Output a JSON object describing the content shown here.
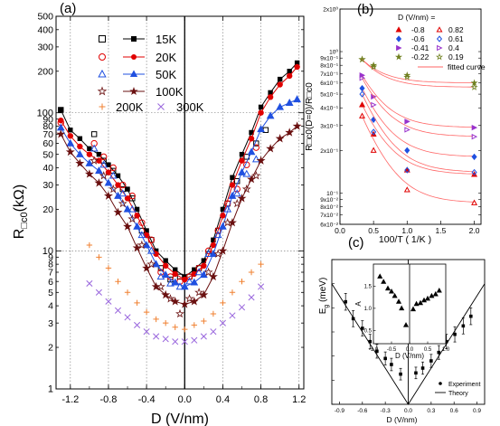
{
  "chart_data": [
    {
      "panel_label": "(a)",
      "type": "scatter",
      "xlabel": "D (V/nm)",
      "ylabel": "R□c0 (kΩ)",
      "ylabel_main": "R",
      "ylabel_sub": "□c0",
      "ylabel_unit": "(kΩ)",
      "x_scale": "linear",
      "y_scale": "log",
      "xlim": [
        -1.35,
        1.25
      ],
      "ylim": [
        1,
        500
      ],
      "x_ticks": [
        -1.2,
        -0.8,
        -0.4,
        0.0,
        0.4,
        0.8,
        1.2
      ],
      "x_tick_labels": [
        "-1.2",
        "-0.8",
        "-0.4",
        "0.0",
        "0.4",
        "0.8",
        "1.2"
      ],
      "y_ticks": [
        1,
        2,
        3,
        4,
        5,
        6,
        7,
        8,
        9,
        10,
        20,
        30,
        40,
        50,
        60,
        70,
        80,
        90,
        100,
        200,
        300,
        400,
        500
      ],
      "y_tick_labels": [
        "1",
        "2",
        "3",
        "4",
        "5",
        "6",
        "7",
        "8",
        "9",
        "10",
        "20",
        "30",
        "40",
        "50",
        "60",
        "70",
        "80",
        "90",
        "100",
        "200",
        "300",
        "400",
        "500"
      ],
      "grid": "dotted",
      "legend": "top-left",
      "series": [
        {
          "name": "15K",
          "marker": "open-square",
          "color": "#000000",
          "x": [
            -1.3,
            -0.95,
            -0.85,
            -0.75,
            -0.65,
            -0.55,
            -0.45,
            -0.35,
            -0.25,
            -0.15,
            -0.05,
            0.05,
            0.15,
            0.25,
            0.35,
            0.45,
            0.55,
            0.65,
            0.75,
            0.85
          ],
          "y": [
            105,
            70,
            45,
            38,
            28,
            24,
            14,
            12,
            7.5,
            6.2,
            6.5,
            6.5,
            7.5,
            9.5,
            14,
            22,
            32,
            48,
            60,
            75
          ]
        },
        {
          "name": "",
          "marker": "filled-square-line",
          "color": "#000000",
          "x": [
            -1.3,
            -1.2,
            -1.1,
            -1.0,
            -0.9,
            -0.8,
            -0.7,
            -0.6,
            -0.5,
            -0.4,
            -0.3,
            -0.2,
            -0.1,
            0.0,
            0.1,
            0.2,
            0.3,
            0.4,
            0.5,
            0.6,
            0.7,
            0.8,
            0.9,
            1.0,
            1.1,
            1.18
          ],
          "y": [
            105,
            75,
            65,
            55,
            50,
            42,
            35,
            28,
            20,
            14,
            10,
            8.5,
            7.3,
            6.5,
            7.3,
            8.5,
            12,
            20,
            34,
            50,
            72,
            110,
            140,
            175,
            200,
            230
          ]
        },
        {
          "name": "20K",
          "marker": "open-circle",
          "color": "#e00000",
          "x": [
            -1.3,
            -0.95,
            -0.85,
            -0.75,
            -0.65,
            -0.55,
            -0.45,
            -0.35,
            -0.25,
            -0.15,
            -0.05,
            0.05,
            0.15,
            0.25,
            0.35,
            0.45,
            0.55,
            0.65,
            0.75
          ],
          "y": [
            85,
            60,
            48,
            40,
            30,
            25,
            16,
            12,
            7,
            6.5,
            6,
            6.5,
            7.5,
            10,
            14,
            22,
            28,
            42,
            56
          ]
        },
        {
          "name": "",
          "marker": "filled-circle-line",
          "color": "#e00000",
          "x": [
            -1.3,
            -1.2,
            -1.1,
            -1.0,
            -0.9,
            -0.8,
            -0.7,
            -0.6,
            -0.5,
            -0.4,
            -0.3,
            -0.2,
            -0.1,
            0.0,
            0.1,
            0.2,
            0.3,
            0.4,
            0.5,
            0.6,
            0.7,
            0.8,
            0.9,
            1.0,
            1.1,
            1.18
          ],
          "y": [
            88,
            68,
            57,
            50,
            45,
            37,
            30,
            24,
            18,
            13,
            9.5,
            7.8,
            6.8,
            6.2,
            6.8,
            7.8,
            11,
            18,
            30,
            45,
            65,
            100,
            130,
            160,
            185,
            215
          ]
        },
        {
          "name": "50K",
          "marker": "open-triangle",
          "color": "#2050e0",
          "x": [
            -0.95,
            -0.85,
            -0.75,
            -0.65,
            -0.55,
            -0.45,
            -0.35,
            -0.25,
            -0.15,
            -0.05,
            0.05,
            0.15,
            0.25,
            0.35,
            0.45,
            0.55,
            0.65,
            0.75
          ],
          "y": [
            55,
            42,
            35,
            26,
            20,
            13,
            10,
            6.5,
            5.8,
            5.5,
            6,
            7,
            9.5,
            13,
            20,
            26,
            36,
            46
          ]
        },
        {
          "name": "",
          "marker": "filled-triangle-line",
          "color": "#2050e0",
          "x": [
            -1.3,
            -1.2,
            -1.1,
            -1.0,
            -0.9,
            -0.8,
            -0.7,
            -0.6,
            -0.5,
            -0.4,
            -0.3,
            -0.2,
            -0.1,
            0.0,
            0.1,
            0.2,
            0.3,
            0.4,
            0.5,
            0.6,
            0.7,
            0.8,
            0.9,
            1.0,
            1.1,
            1.18
          ],
          "y": [
            78,
            60,
            50,
            43,
            38,
            31,
            25,
            20,
            15,
            11,
            8,
            6.7,
            5.9,
            5.5,
            5.9,
            6.7,
            9.5,
            15,
            25,
            37,
            52,
            76,
            95,
            110,
            118,
            125
          ]
        },
        {
          "name": "100K",
          "marker": "open-star",
          "color": "#6a1010",
          "x": [
            -0.95,
            -0.85,
            -0.75,
            -0.65,
            -0.55,
            -0.45,
            -0.35,
            -0.25,
            -0.15,
            -0.05,
            0.05,
            0.15,
            0.25,
            0.35,
            0.45,
            0.55,
            0.65,
            0.75
          ],
          "y": [
            45,
            35,
            28,
            22,
            17,
            11,
            8,
            5.5,
            4.5,
            3.5,
            4.5,
            5,
            7,
            9.5,
            16,
            22,
            28,
            35
          ]
        },
        {
          "name": "",
          "marker": "filled-star-line",
          "color": "#6a1010",
          "x": [
            -1.3,
            -1.2,
            -1.1,
            -1.0,
            -0.9,
            -0.8,
            -0.7,
            -0.6,
            -0.5,
            -0.4,
            -0.3,
            -0.2,
            -0.1,
            0.0,
            0.1,
            0.2,
            0.3,
            0.4,
            0.5,
            0.6,
            0.7,
            0.8,
            0.9,
            1.0,
            1.1,
            1.18
          ],
          "y": [
            70,
            52,
            43,
            36,
            31,
            25,
            19,
            15,
            10.5,
            7.5,
            5.5,
            4.8,
            4.3,
            4.1,
            4.3,
            4.8,
            6.5,
            10,
            16,
            24,
            33,
            45,
            55,
            65,
            72,
            80
          ]
        },
        {
          "name": "200K",
          "marker": "plus",
          "color": "#f08030",
          "x": [
            -1.0,
            -0.9,
            -0.8,
            -0.7,
            -0.6,
            -0.5,
            -0.4,
            -0.3,
            -0.2,
            -0.1,
            0.0,
            0.1,
            0.2,
            0.3,
            0.4,
            0.5,
            0.6,
            0.7,
            0.8
          ],
          "y": [
            11,
            9,
            7.5,
            6,
            5,
            4.2,
            3.6,
            3.2,
            3.0,
            2.8,
            2.7,
            2.9,
            3.1,
            3.5,
            4.2,
            5.0,
            6.0,
            7.0,
            8.0
          ]
        },
        {
          "name": "300K",
          "marker": "cross",
          "color": "#9966dd",
          "x": [
            -1.0,
            -0.9,
            -0.8,
            -0.7,
            -0.6,
            -0.5,
            -0.4,
            -0.3,
            -0.2,
            -0.1,
            0.0,
            0.1,
            0.2,
            0.3,
            0.4,
            0.5,
            0.6,
            0.7,
            0.8
          ],
          "y": [
            5.8,
            5.0,
            4.3,
            3.7,
            3.3,
            2.9,
            2.6,
            2.4,
            2.3,
            2.2,
            2.2,
            2.25,
            2.4,
            2.6,
            3.0,
            3.4,
            3.9,
            4.6,
            5.5
          ]
        }
      ]
    },
    {
      "panel_label": "(b)",
      "type": "scatter",
      "xlabel": "100/T ( 1/K )",
      "ylabel": "R□c0(D=0)/R□c0",
      "x_scale": "linear",
      "y_scale": "log",
      "xlim": [
        0.0,
        2.1
      ],
      "ylim": [
        0.06,
        2.0
      ],
      "x_ticks": [
        0.0,
        0.5,
        1.0,
        1.5,
        2.0
      ],
      "x_tick_labels": [
        "0.0",
        "0.5",
        "1.0",
        "1.5",
        "2.0"
      ],
      "y_tick_labels": [
        "2x10⁰",
        "10⁰",
        "9x10⁻¹",
        "8x10⁻¹",
        "7x10⁻¹",
        "6x10⁻¹",
        "5x10⁻¹",
        "4x10⁻¹",
        "3x10⁻¹",
        "2x10⁻¹",
        "10⁻¹",
        "9x10⁻²",
        "8x10⁻²",
        "7x10⁻²",
        "6x10⁻²"
      ],
      "y_tick_values": [
        2.0,
        1.0,
        0.9,
        0.8,
        0.7,
        0.6,
        0.5,
        0.4,
        0.3,
        0.2,
        0.1,
        0.09,
        0.08,
        0.07,
        0.06
      ],
      "legend": "top-right",
      "legend_title": "D (V/nm) =",
      "fitted_label": "fitted  curve",
      "x": [
        0.33,
        0.5,
        1.0,
        2.0
      ],
      "series": [
        {
          "name": "-0.8",
          "marker": "filled-triangle-up",
          "color": "#e00000",
          "y": [
            0.42,
            0.26,
            0.145,
            0.135
          ]
        },
        {
          "name": "0.82",
          "marker": "open-triangle-up",
          "color": "#e00000",
          "y": [
            0.35,
            0.2,
            0.105,
            0.085
          ]
        },
        {
          "name": "-0.6",
          "marker": "filled-diamond",
          "color": "#2050e0",
          "y": [
            0.55,
            0.33,
            0.2,
            0.18
          ]
        },
        {
          "name": "0.61",
          "marker": "open-diamond",
          "color": "#2050e0",
          "y": [
            0.5,
            0.27,
            0.145,
            0.14
          ]
        },
        {
          "name": "-0.41",
          "marker": "filled-triangle-right",
          "color": "#9933cc",
          "y": [
            0.68,
            0.48,
            0.32,
            0.29
          ]
        },
        {
          "name": "0.4",
          "marker": "open-triangle-right",
          "color": "#9933cc",
          "y": [
            0.65,
            0.42,
            0.28,
            0.25
          ]
        },
        {
          "name": "-0.22",
          "marker": "filled-star",
          "color": "#708020",
          "y": [
            0.88,
            0.8,
            0.68,
            0.6
          ]
        },
        {
          "name": "0.19",
          "marker": "open-star",
          "color": "#708020",
          "y": [
            0.88,
            0.78,
            0.66,
            0.56
          ]
        }
      ]
    },
    {
      "panel_label": "(c)",
      "type": "scatter",
      "xlabel": "D (V/nm)",
      "ylabel": "Eg (meV)",
      "ylabel_main": "E",
      "ylabel_sub": "g",
      "ylabel_unit": "(meV)",
      "xlim": [
        -1.0,
        1.0
      ],
      "ylim": [
        0,
        12
      ],
      "x_ticks": [
        -0.9,
        -0.6,
        -0.3,
        0.0,
        0.3,
        0.6,
        0.9
      ],
      "x_tick_labels": [
        "-0.9",
        "-0.6",
        "-0.3",
        "0.0",
        "0.3",
        "0.6",
        "0.9"
      ],
      "y_ticks": [
        0,
        2,
        4,
        6,
        8,
        10,
        12
      ],
      "legend": "bottom-right",
      "series": [
        {
          "name": "Experiment",
          "marker": "filled-circle",
          "color": "#000000",
          "x": [
            -0.82,
            -0.72,
            -0.6,
            -0.5,
            -0.41,
            -0.3,
            -0.22,
            -0.1,
            0.1,
            0.19,
            0.3,
            0.4,
            0.5,
            0.61,
            0.72,
            0.82
          ],
          "y": [
            8.5,
            7.1,
            6.3,
            5.2,
            4.4,
            3.8,
            3.3,
            2.5,
            2.6,
            3.0,
            3.6,
            4.3,
            5.2,
            5.8,
            6.5,
            7.3
          ]
        },
        {
          "name": "Theory",
          "marker": "line",
          "color": "#000000",
          "x": [
            -1.0,
            0.0,
            1.0
          ],
          "y": [
            10.0,
            0.0,
            10.0
          ]
        }
      ],
      "inset": {
        "xlabel": "D (V/nm)",
        "ylabel": "A",
        "xlim": [
          -1.0,
          1.0
        ],
        "ylim": [
          0.2,
          2.0
        ],
        "x_ticks": [
          -1.0,
          -0.5,
          0.0,
          0.5,
          1.0
        ],
        "x_tick_labels": [
          "-1.0",
          "-0.5",
          "0.0",
          "0.5",
          "1.0"
        ],
        "y_ticks": [
          0.5,
          1.0,
          1.5
        ],
        "y_tick_labels": [
          "0.5",
          "1.0",
          "1.5"
        ],
        "x": [
          -0.82,
          -0.72,
          -0.6,
          -0.5,
          -0.41,
          -0.3,
          -0.22,
          -0.1,
          0.1,
          0.19,
          0.3,
          0.4,
          0.5,
          0.61,
          0.72,
          0.82
        ],
        "y": [
          1.72,
          1.6,
          1.45,
          1.38,
          1.28,
          1.15,
          1.0,
          0.62,
          0.98,
          1.1,
          1.12,
          1.18,
          1.22,
          1.28,
          1.32,
          1.4
        ]
      }
    }
  ]
}
